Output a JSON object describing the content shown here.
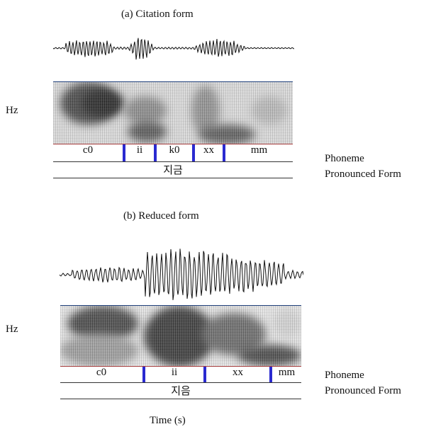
{
  "panel_a": {
    "caption": "(a) Citation form",
    "y_label": "Hz",
    "segments": [
      "c0",
      "ii",
      "k0",
      "xx",
      "mm"
    ],
    "word": "지금"
  },
  "panel_b": {
    "caption": "(b) Reduced form",
    "y_label": "Hz",
    "segments": [
      "c0",
      "ii",
      "xx",
      "mm"
    ],
    "word": "지음"
  },
  "legend": {
    "phoneme": "Phoneme",
    "pronounced": "Pronounced Form"
  },
  "x_label": "Time (s)",
  "colors": {
    "boundary": "#2a2ad0",
    "spectrogram_top": "#1f3f7a",
    "tier_line": "#a43a3a"
  }
}
